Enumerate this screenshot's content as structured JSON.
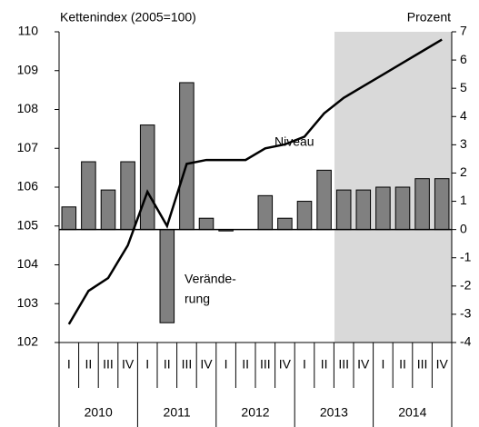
{
  "chart_data": {
    "type": "bar-line",
    "y_label": "Kettenindex (2005=100)",
    "y2_label": "Prozent",
    "annotations": {
      "line": "Niveau",
      "bar": [
        "Verände-",
        "rung"
      ]
    },
    "categories": [
      "I",
      "II",
      "III",
      "IV",
      "I",
      "II",
      "III",
      "IV",
      "I",
      "II",
      "III",
      "IV",
      "I",
      "II",
      "III",
      "IV",
      "I",
      "II",
      "III",
      "IV"
    ],
    "groups": [
      "2010",
      "2011",
      "2012",
      "2013",
      "2014"
    ],
    "series": [
      {
        "type": "bar",
        "axis": "y2",
        "color": "#808080",
        "values": [
          0.8,
          2.4,
          1.4,
          2.4,
          3.7,
          -3.3,
          5.2,
          0.4,
          -0.05,
          0,
          1.2,
          0.4,
          1.0,
          2.1,
          1.4,
          1.4,
          1.5,
          1.5,
          1.8,
          1.8
        ]
      },
      {
        "type": "line",
        "color": "#000000",
        "values": [
          102.47,
          103.33,
          103.66,
          104.5,
          105.88,
          105.0,
          106.6,
          106.7,
          106.7,
          106.7,
          107.0,
          107.1,
          107.3,
          107.9,
          108.3,
          108.6,
          108.9,
          109.2,
          109.5,
          109.8
        ]
      }
    ],
    "ylim": [
      102,
      110
    ],
    "yticks": [
      102,
      103,
      104,
      105,
      106,
      107,
      108,
      109,
      110
    ],
    "y2lim": [
      -4,
      7
    ],
    "y2ticks": [
      -4,
      -3,
      -2,
      -1,
      0,
      1,
      2,
      3,
      4,
      5,
      6,
      7
    ]
  }
}
